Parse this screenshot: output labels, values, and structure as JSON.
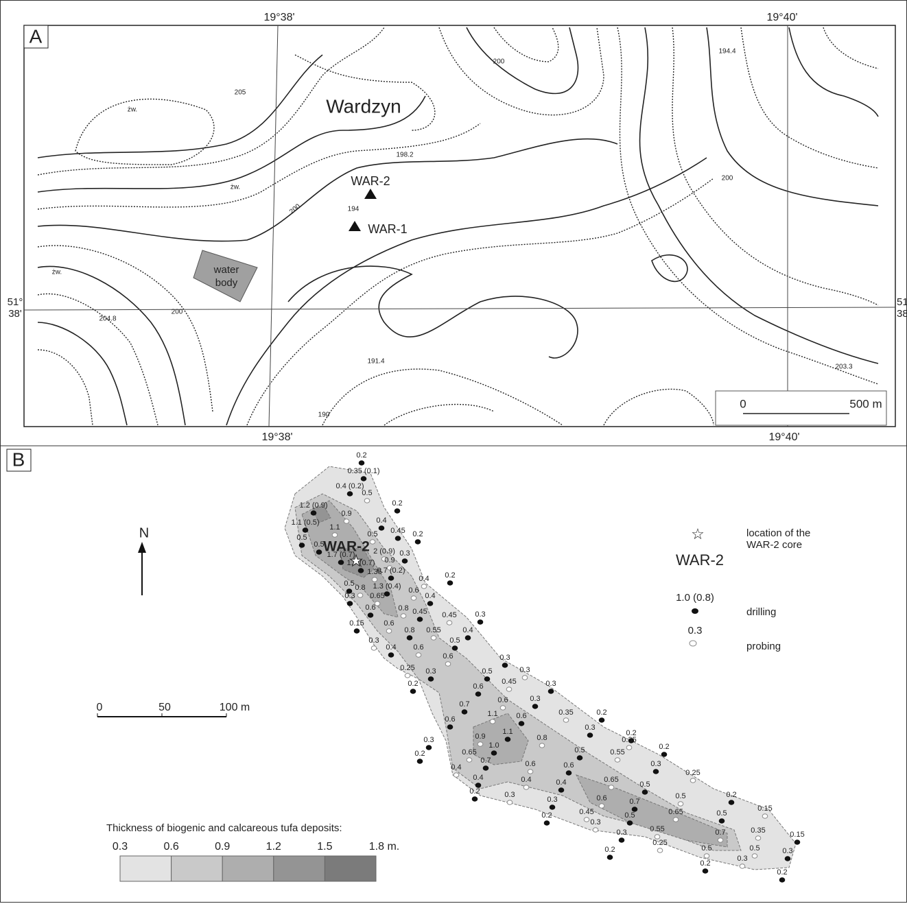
{
  "panel_a": {
    "label": "A",
    "coords_top": [
      "19°38'",
      "19°40'"
    ],
    "coords_bottom": [
      "19°38'",
      "19°40'"
    ],
    "lat_left": [
      "51°",
      "38'"
    ],
    "lat_right": [
      "51",
      "38"
    ],
    "place": "Wardzyn",
    "wells": [
      "WAR-2",
      "WAR-1"
    ],
    "spot_heights": [
      "194.4",
      "198.2",
      "194",
      "204.8",
      "191.4",
      "203.3"
    ],
    "contour_labels": [
      "205",
      "200",
      "200",
      "200",
      "200",
      "190"
    ],
    "marsh": [
      "żw.",
      "żw.",
      "żw."
    ],
    "water_body": [
      "water",
      "body"
    ],
    "scale": [
      "0",
      "500 m"
    ]
  },
  "panel_b": {
    "label": "B",
    "north": "N",
    "core_label": "WAR-2",
    "scale": [
      "0",
      "50",
      "100 m"
    ],
    "legend": {
      "core": [
        "location of the",
        "WAR-2 core"
      ],
      "core_name": "WAR-2",
      "drilling_example": "1.0 (0.8)",
      "drilling": "drilling",
      "probing_example": "0.3",
      "probing": "probing"
    },
    "thickness": {
      "title": "Thickness of biogenic and calcareous tufa deposits:",
      "ticks": [
        "0.3",
        "0.6",
        "0.9",
        "1.2",
        "1.5",
        "1.8 m."
      ],
      "colors": [
        "#e3e3e3",
        "#c9c9c9",
        "#aeaeae",
        "#949494",
        "#7b7b7b"
      ]
    },
    "points": [
      {
        "label": "0.2",
        "kind": "drilling"
      },
      {
        "label": "0.35 (0.1)",
        "kind": "drilling"
      },
      {
        "label": "0.4 (0.2)",
        "kind": "drilling"
      },
      {
        "label": "0.5",
        "kind": "probing"
      },
      {
        "label": "0.2",
        "kind": "drilling"
      },
      {
        "label": "1.2 (0.9)",
        "kind": "drilling"
      },
      {
        "label": "0.9",
        "kind": "probing"
      },
      {
        "label": "0.4",
        "kind": "drilling"
      },
      {
        "label": "0.2",
        "kind": "drilling"
      },
      {
        "label": "1.1 (0.5)",
        "kind": "drilling"
      },
      {
        "label": "1.1",
        "kind": "probing"
      },
      {
        "label": "0.45",
        "kind": "drilling"
      },
      {
        "label": "0.5",
        "kind": "probing"
      },
      {
        "label": "0.5",
        "kind": "drilling"
      },
      {
        "label": "0.5",
        "kind": "drilling"
      },
      {
        "label": "2 (0.9)",
        "kind": "probing"
      },
      {
        "label": "0.3",
        "kind": "drilling"
      },
      {
        "label": "0.9",
        "kind": "probing"
      },
      {
        "label": "1.7 (0.7)",
        "kind": "drilling"
      },
      {
        "label": "1.7 (0.7)",
        "kind": "drilling"
      },
      {
        "label": "0.7 (0.2)",
        "kind": "drilling"
      },
      {
        "label": "0.2",
        "kind": "drilling"
      },
      {
        "label": "1.35",
        "kind": "probing"
      },
      {
        "label": "0.4",
        "kind": "probing"
      },
      {
        "label": "0.5",
        "kind": "drilling"
      },
      {
        "label": "1.3 (0.4)",
        "kind": "drilling"
      },
      {
        "label": "0.8",
        "kind": "probing"
      },
      {
        "label": "0.6",
        "kind": "probing"
      },
      {
        "label": "0.3",
        "kind": "drilling"
      },
      {
        "label": "0.4",
        "kind": "drilling"
      },
      {
        "label": "0.65",
        "kind": "probing"
      },
      {
        "label": "0.6",
        "kind": "drilling"
      },
      {
        "label": "0.8",
        "kind": "probing"
      },
      {
        "label": "0.45",
        "kind": "drilling"
      },
      {
        "label": "0.45",
        "kind": "probing"
      },
      {
        "label": "0.3",
        "kind": "drilling"
      },
      {
        "label": "0.15",
        "kind": "drilling"
      },
      {
        "label": "0.6",
        "kind": "probing"
      },
      {
        "label": "0.8",
        "kind": "drilling"
      },
      {
        "label": "0.55",
        "kind": "probing"
      },
      {
        "label": "0.4",
        "kind": "drilling"
      },
      {
        "label": "0.3",
        "kind": "probing"
      },
      {
        "label": "0.4",
        "kind": "drilling"
      },
      {
        "label": "0.6",
        "kind": "probing"
      },
      {
        "label": "0.5",
        "kind": "drilling"
      },
      {
        "label": "0.6",
        "kind": "probing"
      },
      {
        "label": "0.3",
        "kind": "drilling"
      },
      {
        "label": "0.25",
        "kind": "probing"
      },
      {
        "label": "0.3",
        "kind": "drilling"
      },
      {
        "label": "0.3",
        "kind": "probing"
      },
      {
        "label": "0.5",
        "kind": "drilling"
      },
      {
        "label": "0.45",
        "kind": "probing"
      },
      {
        "label": "0.3",
        "kind": "drilling"
      },
      {
        "label": "0.2",
        "kind": "drilling"
      },
      {
        "label": "0.6",
        "kind": "drilling"
      },
      {
        "label": "0.7",
        "kind": "drilling"
      },
      {
        "label": "0.6",
        "kind": "probing"
      },
      {
        "label": "0.3",
        "kind": "drilling"
      },
      {
        "label": "1.1",
        "kind": "probing"
      },
      {
        "label": "0.6",
        "kind": "drilling"
      },
      {
        "label": "0.35",
        "kind": "probing"
      },
      {
        "label": "0.2",
        "kind": "drilling"
      },
      {
        "label": "0.6",
        "kind": "drilling"
      },
      {
        "label": "1.1",
        "kind": "drilling"
      },
      {
        "label": "0.3",
        "kind": "drilling"
      },
      {
        "label": "0.2",
        "kind": "drilling"
      },
      {
        "label": "0.9",
        "kind": "probing"
      },
      {
        "label": "0.8",
        "kind": "probing"
      },
      {
        "label": "0.35",
        "kind": "probing"
      },
      {
        "label": "0.2",
        "kind": "drilling"
      },
      {
        "label": "0.3",
        "kind": "drilling"
      },
      {
        "label": "1.0",
        "kind": "drilling"
      },
      {
        "label": "0.65",
        "kind": "probing"
      },
      {
        "label": "0.5",
        "kind": "drilling"
      },
      {
        "label": "0.55",
        "kind": "probing"
      },
      {
        "label": "0.3",
        "kind": "drilling"
      },
      {
        "label": "0.2",
        "kind": "drilling"
      },
      {
        "label": "0.7",
        "kind": "drilling"
      },
      {
        "label": "0.6",
        "kind": "probing"
      },
      {
        "label": "0.6",
        "kind": "drilling"
      },
      {
        "label": "0.25",
        "kind": "probing"
      },
      {
        "label": "0.4",
        "kind": "probing"
      },
      {
        "label": "0.4",
        "kind": "drilling"
      },
      {
        "label": "0.65",
        "kind": "probing"
      },
      {
        "label": "0.5",
        "kind": "drilling"
      },
      {
        "label": "0.4",
        "kind": "drilling"
      },
      {
        "label": "0.4",
        "kind": "probing"
      },
      {
        "label": "0.2",
        "kind": "drilling"
      },
      {
        "label": "0.3",
        "kind": "probing"
      },
      {
        "label": "0.3",
        "kind": "drilling"
      },
      {
        "label": "0.6",
        "kind": "probing"
      },
      {
        "label": "0.7",
        "kind": "drilling"
      },
      {
        "label": "0.5",
        "kind": "probing"
      },
      {
        "label": "0.2",
        "kind": "drilling"
      },
      {
        "label": "0.45",
        "kind": "probing"
      },
      {
        "label": "0.5",
        "kind": "drilling"
      },
      {
        "label": "0.65",
        "kind": "probing"
      },
      {
        "label": "0.5",
        "kind": "drilling"
      },
      {
        "label": "0.15",
        "kind": "probing"
      },
      {
        "label": "0.3",
        "kind": "probing"
      },
      {
        "label": "0.55",
        "kind": "probing"
      },
      {
        "label": "0.3",
        "kind": "drilling"
      },
      {
        "label": "0.7",
        "kind": "probing"
      },
      {
        "label": "0.35",
        "kind": "probing"
      },
      {
        "label": "0.2",
        "kind": "drilling"
      },
      {
        "label": "0.15",
        "kind": "drilling"
      },
      {
        "label": "0.25",
        "kind": "probing"
      },
      {
        "label": "0.5",
        "kind": "probing"
      },
      {
        "label": "0.5",
        "kind": "probing"
      },
      {
        "label": "0.2",
        "kind": "drilling"
      },
      {
        "label": "0.3",
        "kind": "drilling"
      },
      {
        "label": "0.3",
        "kind": "probing"
      },
      {
        "label": "0.2",
        "kind": "drilling"
      },
      {
        "label": "0.2",
        "kind": "drilling"
      }
    ]
  }
}
